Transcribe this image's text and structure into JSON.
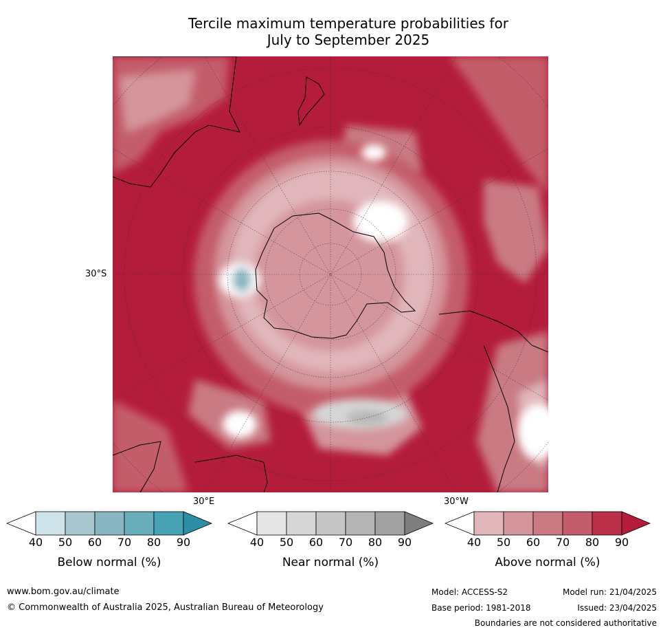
{
  "title": {
    "line1": "Tercile maximum temperature probabilities for",
    "line2": "July to September 2025"
  },
  "map_labels": {
    "lat": "30°S",
    "lon_east": "30°E",
    "lon_west": "30°W"
  },
  "legends": [
    {
      "title": "Below normal (%)",
      "ticks": [
        "40",
        "50",
        "60",
        "70",
        "80",
        "90"
      ],
      "colors": [
        "#ffffff",
        "#cde3e9",
        "#a7c6cd",
        "#8ab6c3",
        "#6aadbb",
        "#47a2b3",
        "#2b8ea6"
      ]
    },
    {
      "title": "Near normal (%)",
      "ticks": [
        "40",
        "50",
        "60",
        "70",
        "80",
        "90"
      ],
      "colors": [
        "#ffffff",
        "#e6e6e6",
        "#d6d6d6",
        "#c6c6c6",
        "#b4b4b4",
        "#a2a2a2",
        "#7e7e7e"
      ]
    },
    {
      "title": "Above normal (%)",
      "ticks": [
        "40",
        "50",
        "60",
        "70",
        "80",
        "90"
      ],
      "colors": [
        "#ffffff",
        "#e1b6bb",
        "#d4959c",
        "#c97a83",
        "#c45d6b",
        "#bc3149",
        "#b41c3b"
      ]
    }
  ],
  "footer": {
    "website": "www.bom.gov.au/climate",
    "copyright": "© Commonwealth of Australia 2025, Australian Bureau of Meteorology",
    "model": "Model: ACCESS-S2",
    "base_period": "Base period: 1981-2018",
    "model_run": "Model run: 21/04/2025",
    "issued": "Issued: 23/04/2025",
    "disclaimer": "Boundaries are not considered authoritative"
  }
}
